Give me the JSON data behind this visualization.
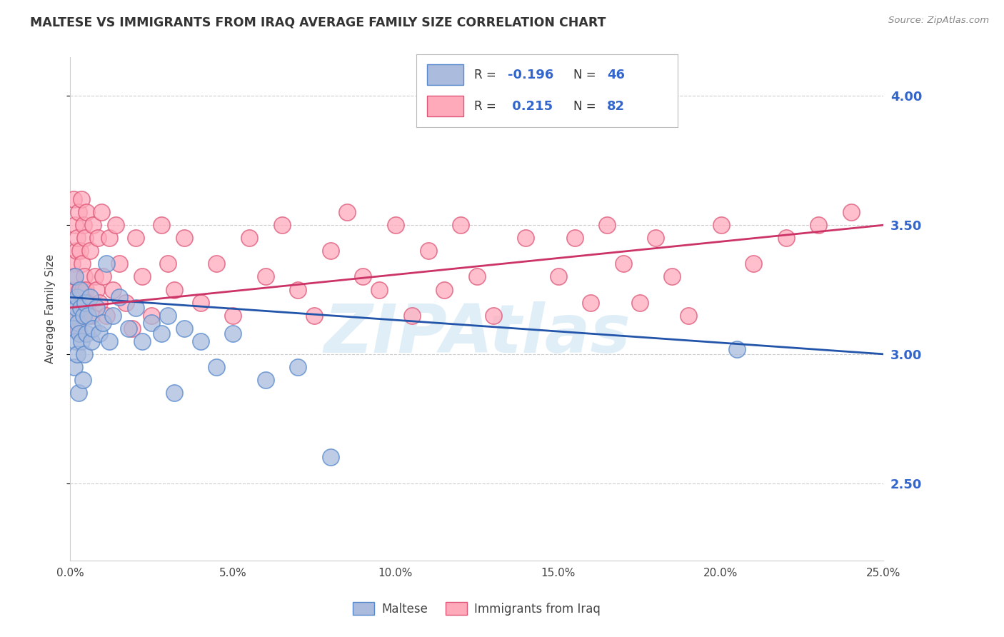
{
  "title": "MALTESE VS IMMIGRANTS FROM IRAQ AVERAGE FAMILY SIZE CORRELATION CHART",
  "source_text": "Source: ZipAtlas.com",
  "ylabel": "Average Family Size",
  "watermark": "ZIPAtlas",
  "ylim": [
    2.2,
    4.15
  ],
  "xlim": [
    0.0,
    25.0
  ],
  "yticks": [
    2.5,
    3.0,
    3.5,
    4.0
  ],
  "xticks": [
    0.0,
    5.0,
    10.0,
    15.0,
    20.0,
    25.0
  ],
  "blue_color": "#5588CC",
  "blue_fill": "#AABBDD",
  "pink_color": "#DD5577",
  "pink_fill": "#FFAABB",
  "legend_blue_R": "-0.196",
  "legend_blue_N": "46",
  "legend_pink_R": "0.215",
  "legend_pink_N": "82",
  "blue_trend_x": [
    0.0,
    25.0
  ],
  "blue_trend_y": [
    3.22,
    3.0
  ],
  "pink_trend_x": [
    0.0,
    25.0
  ],
  "pink_trend_y": [
    3.18,
    3.5
  ],
  "blue_points": [
    [
      0.05,
      3.2
    ],
    [
      0.08,
      3.15
    ],
    [
      0.1,
      3.1
    ],
    [
      0.12,
      2.95
    ],
    [
      0.14,
      3.3
    ],
    [
      0.16,
      3.05
    ],
    [
      0.18,
      3.18
    ],
    [
      0.2,
      3.22
    ],
    [
      0.22,
      3.0
    ],
    [
      0.24,
      3.12
    ],
    [
      0.26,
      2.85
    ],
    [
      0.28,
      3.08
    ],
    [
      0.3,
      3.25
    ],
    [
      0.32,
      3.18
    ],
    [
      0.35,
      3.05
    ],
    [
      0.38,
      2.9
    ],
    [
      0.4,
      3.15
    ],
    [
      0.42,
      3.0
    ],
    [
      0.45,
      3.2
    ],
    [
      0.5,
      3.08
    ],
    [
      0.55,
      3.15
    ],
    [
      0.6,
      3.22
    ],
    [
      0.65,
      3.05
    ],
    [
      0.7,
      3.1
    ],
    [
      0.8,
      3.18
    ],
    [
      0.9,
      3.08
    ],
    [
      1.0,
      3.12
    ],
    [
      1.1,
      3.35
    ],
    [
      1.2,
      3.05
    ],
    [
      1.3,
      3.15
    ],
    [
      1.5,
      3.22
    ],
    [
      1.8,
      3.1
    ],
    [
      2.0,
      3.18
    ],
    [
      2.2,
      3.05
    ],
    [
      2.5,
      3.12
    ],
    [
      2.8,
      3.08
    ],
    [
      3.0,
      3.15
    ],
    [
      3.2,
      2.85
    ],
    [
      3.5,
      3.1
    ],
    [
      4.0,
      3.05
    ],
    [
      4.5,
      2.95
    ],
    [
      5.0,
      3.08
    ],
    [
      6.0,
      2.9
    ],
    [
      7.0,
      2.95
    ],
    [
      20.5,
      3.02
    ],
    [
      8.0,
      2.6
    ]
  ],
  "pink_points": [
    [
      0.04,
      3.25
    ],
    [
      0.06,
      3.35
    ],
    [
      0.08,
      3.1
    ],
    [
      0.1,
      3.6
    ],
    [
      0.12,
      3.3
    ],
    [
      0.14,
      3.5
    ],
    [
      0.16,
      3.15
    ],
    [
      0.18,
      3.4
    ],
    [
      0.2,
      3.2
    ],
    [
      0.22,
      3.45
    ],
    [
      0.24,
      3.1
    ],
    [
      0.26,
      3.55
    ],
    [
      0.28,
      3.25
    ],
    [
      0.3,
      3.4
    ],
    [
      0.32,
      3.15
    ],
    [
      0.34,
      3.6
    ],
    [
      0.36,
      3.35
    ],
    [
      0.38,
      3.25
    ],
    [
      0.4,
      3.5
    ],
    [
      0.42,
      3.3
    ],
    [
      0.44,
      3.15
    ],
    [
      0.46,
      3.45
    ],
    [
      0.48,
      3.25
    ],
    [
      0.5,
      3.55
    ],
    [
      0.55,
      3.2
    ],
    [
      0.6,
      3.4
    ],
    [
      0.65,
      3.15
    ],
    [
      0.7,
      3.5
    ],
    [
      0.75,
      3.3
    ],
    [
      0.8,
      3.25
    ],
    [
      0.85,
      3.45
    ],
    [
      0.9,
      3.2
    ],
    [
      0.95,
      3.55
    ],
    [
      1.0,
      3.3
    ],
    [
      1.1,
      3.15
    ],
    [
      1.2,
      3.45
    ],
    [
      1.3,
      3.25
    ],
    [
      1.4,
      3.5
    ],
    [
      1.5,
      3.35
    ],
    [
      1.7,
      3.2
    ],
    [
      1.9,
      3.1
    ],
    [
      2.0,
      3.45
    ],
    [
      2.2,
      3.3
    ],
    [
      2.5,
      3.15
    ],
    [
      2.8,
      3.5
    ],
    [
      3.0,
      3.35
    ],
    [
      3.2,
      3.25
    ],
    [
      3.5,
      3.45
    ],
    [
      4.0,
      3.2
    ],
    [
      4.5,
      3.35
    ],
    [
      5.0,
      3.15
    ],
    [
      5.5,
      3.45
    ],
    [
      6.0,
      3.3
    ],
    [
      6.5,
      3.5
    ],
    [
      7.0,
      3.25
    ],
    [
      7.5,
      3.15
    ],
    [
      8.0,
      3.4
    ],
    [
      8.5,
      3.55
    ],
    [
      9.0,
      3.3
    ],
    [
      9.5,
      3.25
    ],
    [
      10.0,
      3.5
    ],
    [
      10.5,
      3.15
    ],
    [
      11.0,
      3.4
    ],
    [
      11.5,
      3.25
    ],
    [
      12.0,
      3.5
    ],
    [
      12.5,
      3.3
    ],
    [
      13.0,
      3.15
    ],
    [
      14.0,
      3.45
    ],
    [
      15.0,
      3.3
    ],
    [
      15.5,
      3.45
    ],
    [
      16.0,
      3.2
    ],
    [
      16.5,
      3.5
    ],
    [
      17.0,
      3.35
    ],
    [
      17.5,
      3.2
    ],
    [
      18.0,
      3.45
    ],
    [
      18.5,
      3.3
    ],
    [
      19.0,
      3.15
    ],
    [
      20.0,
      3.5
    ],
    [
      21.0,
      3.35
    ],
    [
      22.0,
      3.45
    ],
    [
      23.0,
      3.5
    ],
    [
      24.0,
      3.55
    ]
  ]
}
